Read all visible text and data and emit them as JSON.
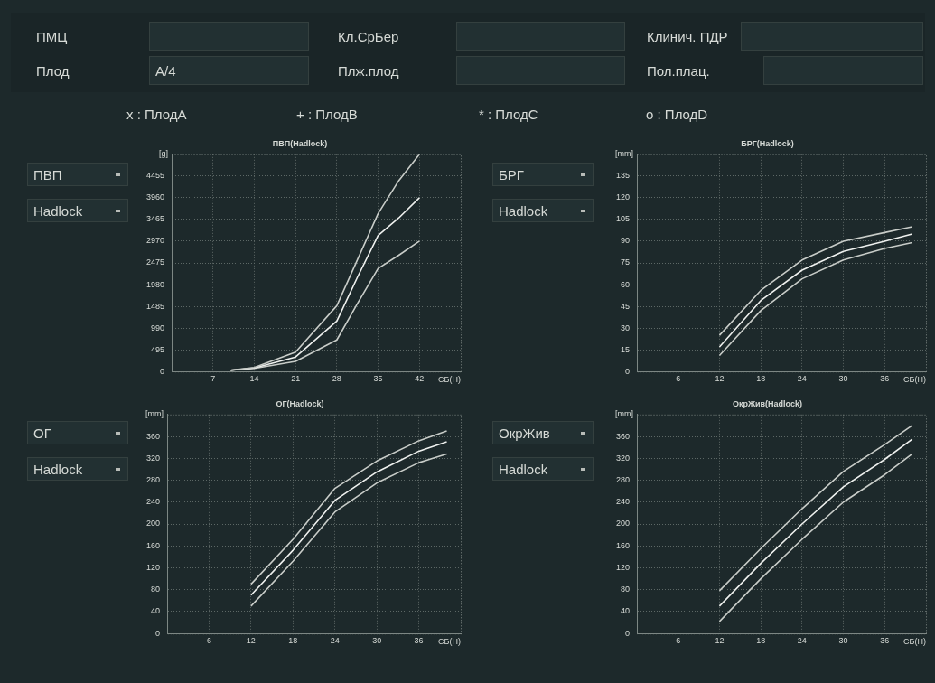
{
  "chart_data": [
    {
      "type": "other",
      "annotations": [
        "ПМЦ",
        "Кл.СрБер",
        "Клинич. ПДР",
        "Плод",
        "A/4",
        "Плж.плод",
        "Пол.плац.",
        "x : ПлодA",
        "+ : ПлодB",
        "* : ПлодC",
        "o : ПлодD",
        "ПВП",
        "Hadlock",
        "БРГ",
        "Hadlock",
        "ОГ",
        "Hadlock",
        "ОкрЖив",
        "Hadlock"
      ]
    },
    {
      "type": "line",
      "title": "ПВП(Hadlock)",
      "ylabel": "[g]",
      "xlabel": "СБ(Н)",
      "x": [
        10,
        14,
        21,
        28,
        31.5,
        35,
        38.5,
        42
      ],
      "xlim": [
        0,
        49
      ],
      "xticks": [
        7,
        14,
        21,
        28,
        35,
        42
      ],
      "ylim": [
        0,
        4950
      ],
      "yticks": [
        0,
        495,
        990,
        1485,
        1980,
        2475,
        2970,
        3465,
        3960,
        4455
      ],
      "grid": true,
      "marker": "none",
      "line_style": "solid",
      "series": [
        {
          "color": "#c8ccc8",
          "values": [
            30,
            90,
            440,
            1500,
            2550,
            3600,
            4350,
            4950
          ]
        },
        {
          "color": "#eef0ee",
          "values": [
            30,
            80,
            330,
            1150,
            2150,
            3100,
            3500,
            3960
          ]
        },
        {
          "color": "#c8ccc8",
          "values": [
            30,
            70,
            230,
            720,
            1550,
            2350,
            2650,
            2970
          ]
        }
      ]
    },
    {
      "type": "line",
      "title": "БРГ(Hadlock)",
      "ylabel": "[mm]",
      "xlabel": "СБ(Н)",
      "x": [
        12,
        18,
        24,
        30,
        36,
        40
      ],
      "xlim": [
        0,
        42
      ],
      "xticks": [
        6,
        12,
        18,
        24,
        30,
        36
      ],
      "ylim": [
        0,
        150
      ],
      "yticks": [
        0,
        15,
        30,
        45,
        60,
        75,
        90,
        105,
        120,
        135
      ],
      "grid": true,
      "marker": "none",
      "line_style": "solid",
      "series": [
        {
          "color": "#c8ccc8",
          "values": [
            25,
            56,
            77,
            90,
            96,
            100
          ]
        },
        {
          "color": "#eef0ee",
          "values": [
            17,
            49,
            70,
            83,
            90,
            95
          ]
        },
        {
          "color": "#c8ccc8",
          "values": [
            11,
            42,
            64,
            77,
            85,
            89
          ]
        }
      ]
    },
    {
      "type": "line",
      "title": "ОГ(Hadlock)",
      "ylabel": "[mm]",
      "xlabel": "СБ(Н)",
      "x": [
        12,
        18,
        24,
        30,
        36,
        40
      ],
      "xlim": [
        0,
        42
      ],
      "xticks": [
        6,
        12,
        18,
        24,
        30,
        36
      ],
      "ylim": [
        0,
        400
      ],
      "yticks": [
        0,
        40,
        80,
        120,
        160,
        200,
        240,
        280,
        320,
        360
      ],
      "grid": true,
      "marker": "none",
      "line_style": "solid",
      "series": [
        {
          "color": "#c8ccc8",
          "values": [
            90,
            172,
            265,
            315,
            352,
            370
          ]
        },
        {
          "color": "#eef0ee",
          "values": [
            70,
            152,
            243,
            295,
            333,
            350
          ]
        },
        {
          "color": "#c8ccc8",
          "values": [
            50,
            132,
            222,
            275,
            312,
            328
          ]
        }
      ]
    },
    {
      "type": "line",
      "title": "ОкрЖив(Hadlock)",
      "ylabel": "[mm]",
      "xlabel": "СБ(Н)",
      "x": [
        12,
        18,
        24,
        30,
        36,
        40
      ],
      "xlim": [
        0,
        42
      ],
      "xticks": [
        6,
        12,
        18,
        24,
        30,
        36
      ],
      "ylim": [
        0,
        400
      ],
      "yticks": [
        0,
        40,
        80,
        120,
        160,
        200,
        240,
        280,
        320,
        360
      ],
      "grid": true,
      "marker": "none",
      "line_style": "solid",
      "series": [
        {
          "color": "#c8ccc8",
          "values": [
            78,
            155,
            228,
            296,
            345,
            380
          ]
        },
        {
          "color": "#eef0ee",
          "values": [
            50,
            128,
            200,
            268,
            318,
            355
          ]
        },
        {
          "color": "#c8ccc8",
          "values": [
            22,
            100,
            172,
            240,
            290,
            328
          ]
        }
      ]
    }
  ]
}
